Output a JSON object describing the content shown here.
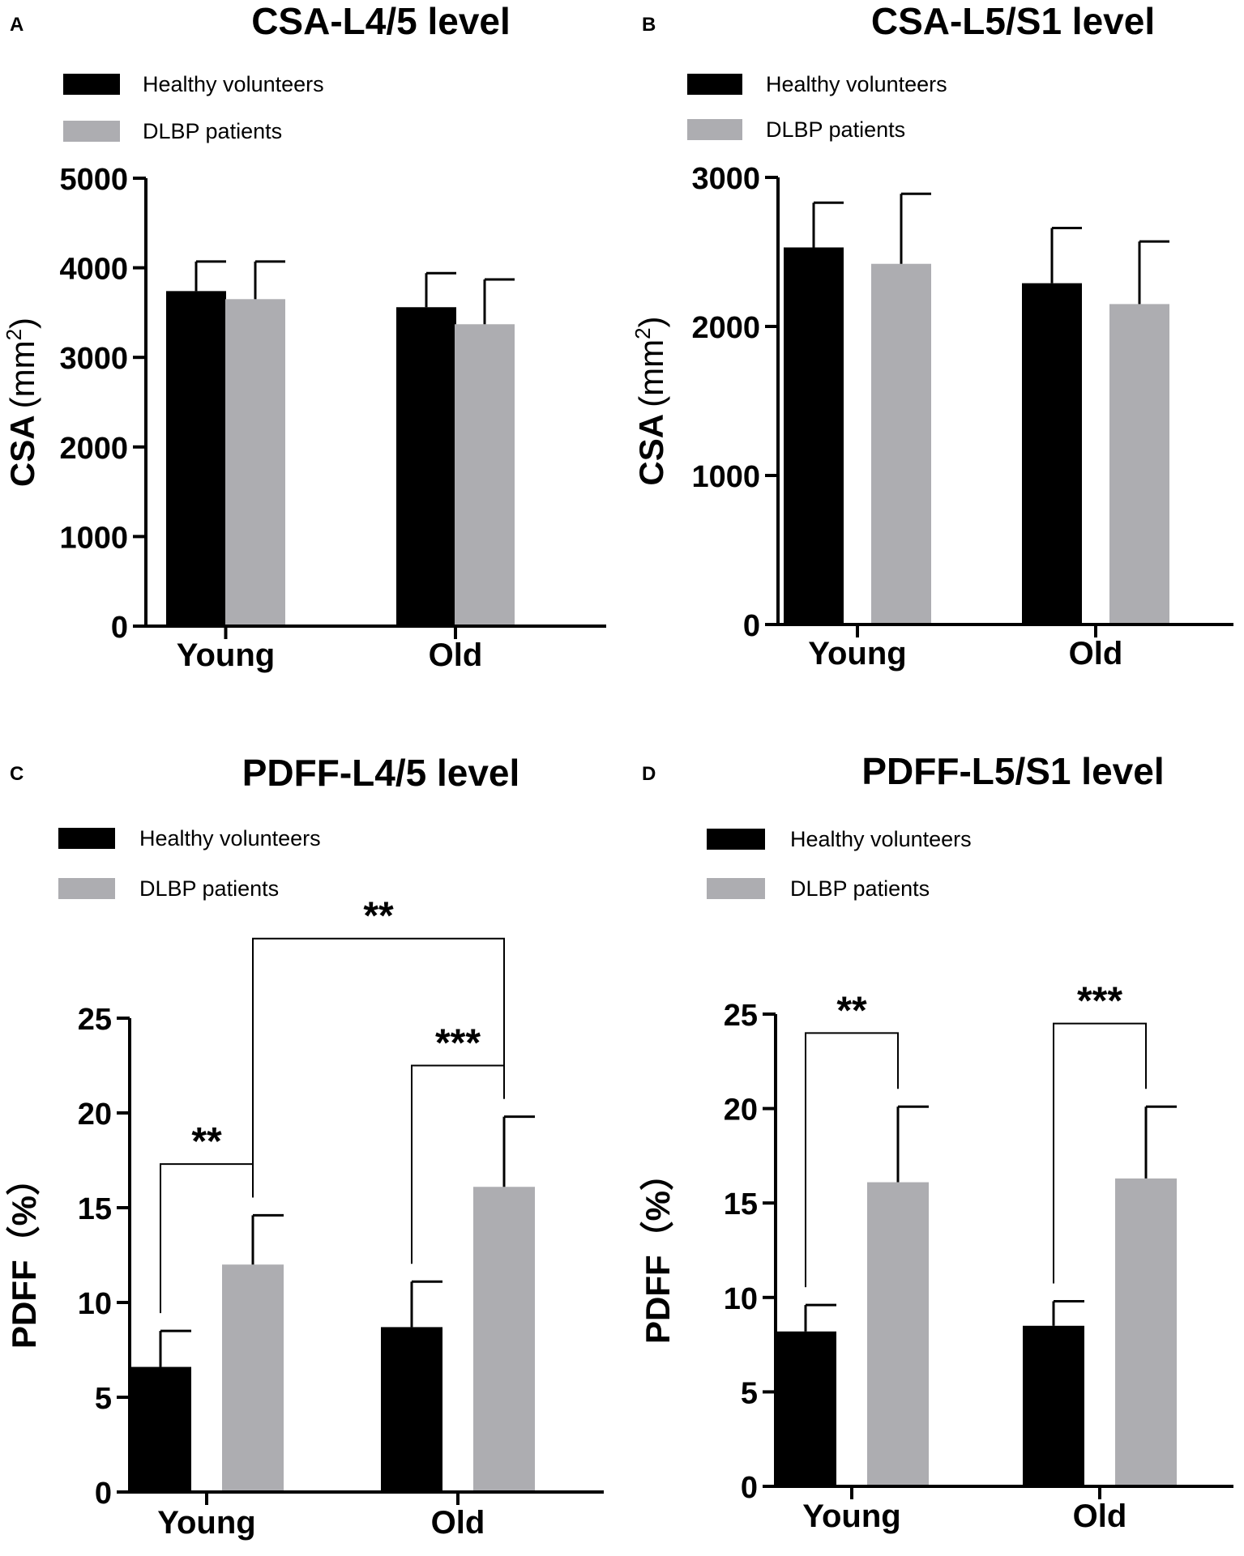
{
  "figure": {
    "colors": {
      "healthy": "#000000",
      "dlbp": "#adadb1",
      "axis": "#000000"
    }
  },
  "chart_data": [
    {
      "panel_label": "A",
      "type": "bar",
      "title": "CSA-L4/5 level",
      "ylabel": "CSA",
      "ylabel_unit": "mm",
      "ylabel_unit_sup": "2",
      "xlabel": "",
      "categories": [
        "Young",
        "Old"
      ],
      "ylim": [
        0,
        5000
      ],
      "yticks": [
        0,
        1000,
        2000,
        3000,
        4000,
        5000
      ],
      "ytick_labels": [
        "0",
        "1000",
        "2000",
        "3000",
        "4000",
        "5000"
      ],
      "legend": [
        "Healthy volunteers",
        "DLBP patients"
      ],
      "legend_position": "top-left",
      "series": [
        {
          "name": "Healthy volunteers",
          "values": [
            3740,
            3560
          ],
          "errors": [
            330,
            380
          ]
        },
        {
          "name": "DLBP patients",
          "values": [
            3650,
            3370
          ],
          "errors": [
            420,
            500
          ]
        }
      ],
      "brackets": []
    },
    {
      "panel_label": "B",
      "type": "bar",
      "title": "CSA-L5/S1 level",
      "ylabel": "CSA",
      "ylabel_unit": "mm",
      "ylabel_unit_sup": "2",
      "xlabel": "",
      "categories": [
        "Young",
        "Old"
      ],
      "ylim": [
        0,
        3000
      ],
      "yticks": [
        0,
        1000,
        2000,
        3000
      ],
      "ytick_labels": [
        "0",
        "1000",
        "2000",
        "3000"
      ],
      "legend": [
        "Healthy volunteers",
        "DLBP patients"
      ],
      "legend_position": "top-left",
      "series": [
        {
          "name": "Healthy volunteers",
          "values": [
            2530,
            2290
          ],
          "errors": [
            300,
            370
          ]
        },
        {
          "name": "DLBP patients",
          "values": [
            2420,
            2150
          ],
          "errors": [
            470,
            420
          ]
        }
      ],
      "brackets": []
    },
    {
      "panel_label": "C",
      "type": "bar",
      "title": "PDFF-L4/5 level",
      "ylabel": "PDFF（%）",
      "ylabel_unit": "",
      "ylabel_unit_sup": "",
      "xlabel": "",
      "categories": [
        "Young",
        "Old"
      ],
      "ylim": [
        0,
        25
      ],
      "yticks": [
        0,
        5,
        10,
        15,
        20,
        25
      ],
      "ytick_labels": [
        "0",
        "5",
        "10",
        "15",
        "20",
        "25"
      ],
      "legend": [
        "Healthy volunteers",
        "DLBP patients"
      ],
      "legend_position": "top-left",
      "series": [
        {
          "name": "Healthy volunteers",
          "values": [
            6.6,
            8.7
          ],
          "errors": [
            1.9,
            2.4
          ]
        },
        {
          "name": "DLBP patients",
          "values": [
            12.0,
            16.1
          ],
          "errors": [
            2.6,
            3.7
          ]
        }
      ],
      "brackets": [
        {
          "label": "**",
          "from": [
            0,
            0
          ],
          "to": [
            0,
            1
          ],
          "top": 17.3
        },
        {
          "label": "***",
          "from": [
            1,
            0
          ],
          "to": [
            1,
            1
          ],
          "top": 22.5
        },
        {
          "label": "**",
          "from": [
            0,
            1
          ],
          "to": [
            1,
            1
          ],
          "top": 29.2
        }
      ]
    },
    {
      "panel_label": "D",
      "type": "bar",
      "title": "PDFF-L5/S1 level",
      "ylabel": "PDFF（%）",
      "ylabel_unit": "",
      "ylabel_unit_sup": "",
      "xlabel": "",
      "categories": [
        "Young",
        "Old"
      ],
      "ylim": [
        0,
        25
      ],
      "yticks": [
        0,
        5,
        10,
        15,
        20,
        25
      ],
      "ytick_labels": [
        "0",
        "5",
        "10",
        "15",
        "20",
        "25"
      ],
      "legend": [
        "Healthy volunteers",
        "DLBP patients"
      ],
      "legend_position": "top-left",
      "series": [
        {
          "name": "Healthy volunteers",
          "values": [
            8.2,
            8.5
          ],
          "errors": [
            1.4,
            1.3
          ]
        },
        {
          "name": "DLBP patients",
          "values": [
            16.1,
            16.3
          ],
          "errors": [
            4.0,
            3.8
          ]
        }
      ],
      "brackets": [
        {
          "label": "**",
          "from": [
            0,
            0
          ],
          "to": [
            0,
            1
          ],
          "top": 24.0
        },
        {
          "label": "***",
          "from": [
            1,
            0
          ],
          "to": [
            1,
            1
          ],
          "top": 24.5
        }
      ]
    }
  ]
}
